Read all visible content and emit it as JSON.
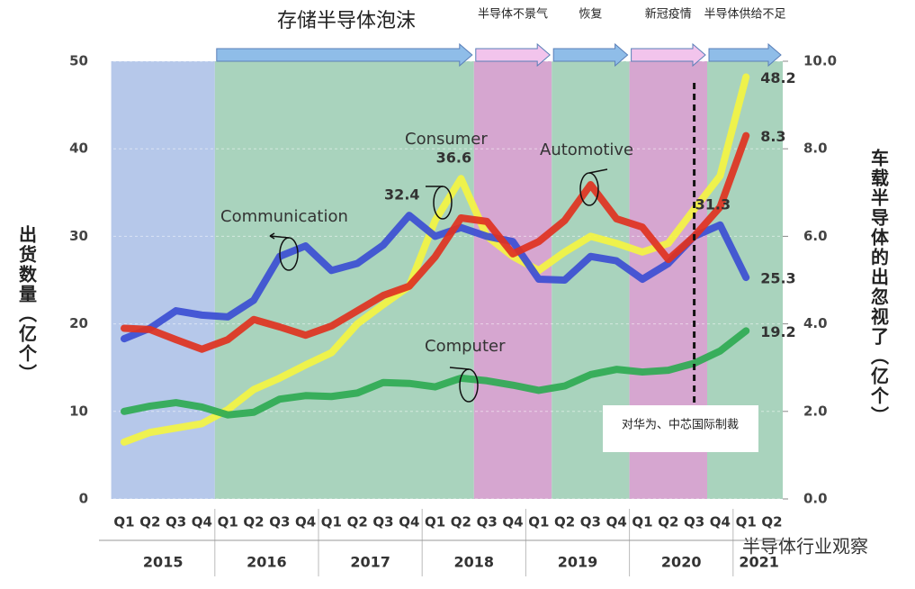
{
  "chart_data": {
    "type": "line",
    "ylabel": "出货数量（亿个）",
    "y2label": "车载半导体的出忽视了（亿个）",
    "categories": [
      "Q1",
      "Q2",
      "Q3",
      "Q4",
      "Q1",
      "Q2",
      "Q3",
      "Q4",
      "Q1",
      "Q2",
      "Q3",
      "Q4",
      "Q1",
      "Q2",
      "Q3",
      "Q4",
      "Q1",
      "Q2",
      "Q3",
      "Q4",
      "Q1",
      "Q2",
      "Q3",
      "Q4",
      "Q1",
      "Q2"
    ],
    "years": [
      "2015",
      "2016",
      "2017",
      "2018",
      "2019",
      "2020",
      "2021"
    ],
    "ylim": [
      0,
      50
    ],
    "yticks": [
      0,
      10,
      20,
      30,
      40,
      50
    ],
    "y2lim": [
      0,
      10
    ],
    "y2ticks": [
      {
        "value": 0,
        "label": "0.0"
      },
      {
        "value": 2,
        "label": "2.0"
      },
      {
        "value": 4,
        "label": "4.0"
      },
      {
        "value": 6,
        "label": "6.0"
      },
      {
        "value": 8,
        "label": "8.0"
      },
      {
        "value": 10,
        "label": "10.0"
      }
    ],
    "grid": true,
    "bands": [
      {
        "from": 0,
        "to": 3,
        "color": "#b6c8ea"
      },
      {
        "from": 4,
        "to": 13,
        "color": "#a9d3bd"
      },
      {
        "from": 14,
        "to": 16,
        "color": "#d6a6d0"
      },
      {
        "from": 17,
        "to": 19,
        "color": "#a9d3bd"
      },
      {
        "from": 20,
        "to": 22,
        "color": "#d6a6d0"
      },
      {
        "from": 23,
        "to": 25,
        "color": "#a9d3bd"
      }
    ],
    "phases": [
      {
        "label": "存储半导体泡沫",
        "from": 4,
        "to": 13,
        "color": "#8fbde8"
      },
      {
        "label": "半导体不景气",
        "from": 14,
        "to": 16,
        "color": "#f2c4ec"
      },
      {
        "label": "恢复",
        "from": 17,
        "to": 19,
        "color": "#8fbde8"
      },
      {
        "label": "新冠疫情",
        "from": 20,
        "to": 22,
        "color": "#f2c4ec"
      },
      {
        "label": "半导体供给不足",
        "from": 23,
        "to": 25,
        "color": "#8fbde8"
      }
    ],
    "event": {
      "label": "对华为、中芯国际制裁",
      "at": 22
    },
    "watermark": "半导体行业观察",
    "series": [
      {
        "name": "Consumer",
        "color": "#f4f442",
        "values": [
          6.5,
          7.6,
          8.1,
          8.6,
          10.2,
          12.5,
          13.8,
          15.3,
          16.7,
          20.0,
          22.2,
          24.3,
          31.8,
          36.6,
          30.0,
          27.7,
          26.1,
          28.2,
          30.0,
          29.2,
          28.2,
          29.2,
          33.1,
          36.9,
          48.2,
          null
        ],
        "value_labels": [
          null,
          null,
          null,
          null,
          null,
          null,
          null,
          null,
          null,
          null,
          null,
          null,
          null,
          "36.6",
          null,
          null,
          null,
          null,
          null,
          null,
          null,
          null,
          null,
          null,
          "48.2",
          null
        ]
      },
      {
        "name": "Computer",
        "color": "#2faa52",
        "values": [
          10.0,
          10.6,
          11.0,
          10.5,
          9.6,
          9.9,
          11.4,
          11.8,
          11.7,
          12.1,
          13.3,
          13.2,
          12.8,
          13.8,
          13.5,
          13.0,
          12.4,
          12.9,
          14.2,
          14.8,
          14.5,
          14.7,
          15.5,
          16.9,
          19.2,
          null
        ],
        "value_labels": [
          null,
          null,
          null,
          null,
          null,
          null,
          null,
          null,
          null,
          null,
          null,
          null,
          null,
          null,
          null,
          null,
          null,
          null,
          null,
          null,
          null,
          null,
          null,
          null,
          "19.2",
          null
        ]
      },
      {
        "name": "Communication",
        "color": "#3c4ed2",
        "values": [
          18.3,
          19.5,
          21.5,
          21.0,
          20.8,
          22.7,
          27.7,
          28.9,
          26.1,
          26.9,
          29.0,
          32.4,
          30.0,
          31.0,
          30.0,
          29.4,
          25.1,
          25.0,
          27.7,
          27.2,
          25.1,
          26.9,
          30.0,
          31.3,
          25.3,
          null
        ],
        "value_labels": [
          null,
          null,
          null,
          null,
          null,
          null,
          null,
          null,
          null,
          null,
          null,
          "32.4",
          null,
          null,
          null,
          null,
          null,
          null,
          null,
          null,
          null,
          null,
          null,
          "31.3",
          "25.3",
          null
        ]
      },
      {
        "name": "Automotive",
        "color": "#e0321f",
        "axis": "y2",
        "values": [
          3.9,
          3.87,
          3.64,
          3.42,
          3.64,
          4.1,
          3.93,
          3.74,
          3.95,
          4.3,
          4.65,
          4.86,
          5.53,
          6.42,
          6.34,
          5.6,
          5.88,
          6.36,
          7.18,
          6.4,
          6.21,
          5.47,
          6.0,
          6.67,
          8.3,
          null
        ],
        "value_labels": [
          null,
          null,
          null,
          null,
          null,
          null,
          null,
          null,
          null,
          null,
          null,
          null,
          null,
          null,
          null,
          null,
          null,
          null,
          null,
          null,
          null,
          null,
          null,
          null,
          "8.3",
          null
        ]
      }
    ]
  }
}
